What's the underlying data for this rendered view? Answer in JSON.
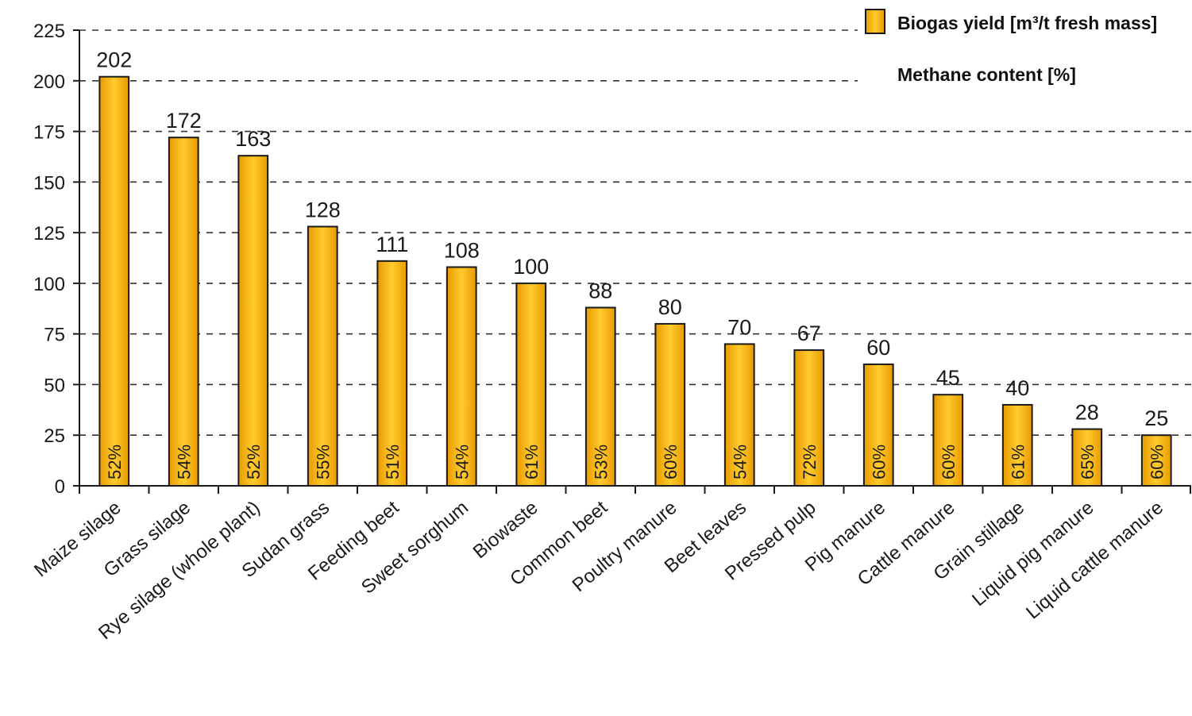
{
  "chart_data": {
    "type": "bar",
    "categories": [
      "Maize silage",
      "Grass silage",
      "Rye silage (whole plant)",
      "Sudan grass",
      "Feeding beet",
      "Sweet sorghum",
      "Biowaste",
      "Common beet",
      "Poultry manure",
      "Beet leaves",
      "Pressed pulp",
      "Pig manure",
      "Cattle manure",
      "Grain stillage",
      "Liquid pig manure",
      "Liquid cattle manure"
    ],
    "series": [
      {
        "name": "Biogas yield [m³/t fresh mass]",
        "values": [
          202,
          172,
          163,
          128,
          111,
          108,
          100,
          88,
          80,
          70,
          67,
          60,
          45,
          40,
          28,
          25
        ]
      },
      {
        "name": "Methane content [%]",
        "values": [
          52,
          54,
          52,
          55,
          51,
          54,
          61,
          53,
          60,
          54,
          72,
          60,
          60,
          61,
          65,
          60
        ]
      }
    ],
    "value_labels": [
      "202",
      "172",
      "163",
      "128",
      "111",
      "108",
      "100",
      "88",
      "80",
      "70",
      "67",
      "60",
      "45",
      "40",
      "28",
      "25"
    ],
    "methane_labels": [
      "52%",
      "54%",
      "52%",
      "55%",
      "51%",
      "54%",
      "61%",
      "53%",
      "60%",
      "54%",
      "72%",
      "60%",
      "60%",
      "61%",
      "65%",
      "60%"
    ],
    "yticks": [
      "0",
      "25",
      "50",
      "75",
      "100",
      "125",
      "150",
      "175",
      "200",
      "225"
    ],
    "ylim": [
      0,
      225
    ],
    "ytick_step": 25,
    "grid": true,
    "legend_position": "top-right",
    "title": "",
    "xlabel": "",
    "ylabel": "",
    "colors": {
      "bar_edge": "#e89a00",
      "bar_center": "#ffcc2e",
      "bar_border": "#1a1a1a",
      "grid": "#333333",
      "text": "#1a1a1a"
    }
  },
  "legend": {
    "biogas_label": "Biogas yield [m³/t fresh mass]",
    "methane_label": "Methane content [%]"
  }
}
